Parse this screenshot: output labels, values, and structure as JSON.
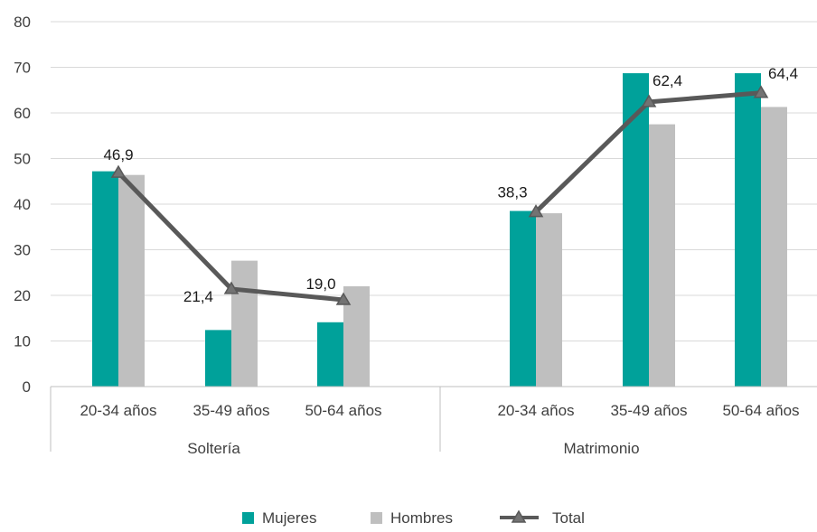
{
  "chart_data": {
    "type": "bar",
    "title": "",
    "xlabel": "",
    "ylabel": "",
    "ylim": [
      0,
      80
    ],
    "yticks": [
      0,
      10,
      20,
      30,
      40,
      50,
      60,
      70,
      80
    ],
    "groups": [
      {
        "label": "Soltería",
        "categories": [
          "20-34 años",
          "35-49 años",
          "50-64 años"
        ]
      },
      {
        "label": "Matrimonio",
        "categories": [
          "20-34 años",
          "35-49 años",
          "50-64 años"
        ]
      }
    ],
    "series": [
      {
        "name": "Mujeres",
        "kind": "bar",
        "color": "#00a19a",
        "values": [
          47.2,
          12.4,
          14.1,
          38.5,
          68.7,
          68.7
        ]
      },
      {
        "name": "Hombres",
        "kind": "bar",
        "color": "#bfbfbf",
        "values": [
          46.4,
          27.6,
          22.0,
          38.0,
          57.5,
          61.3
        ]
      },
      {
        "name": "Total",
        "kind": "line",
        "color": "#595959",
        "marker": "triangle",
        "values": [
          46.9,
          21.4,
          19.0,
          38.3,
          62.4,
          64.4
        ],
        "labels": [
          "46,9",
          "21,4",
          "19,0",
          "38,3",
          "62,4",
          "64,4"
        ]
      }
    ],
    "grid": true,
    "legend": "bottom"
  }
}
